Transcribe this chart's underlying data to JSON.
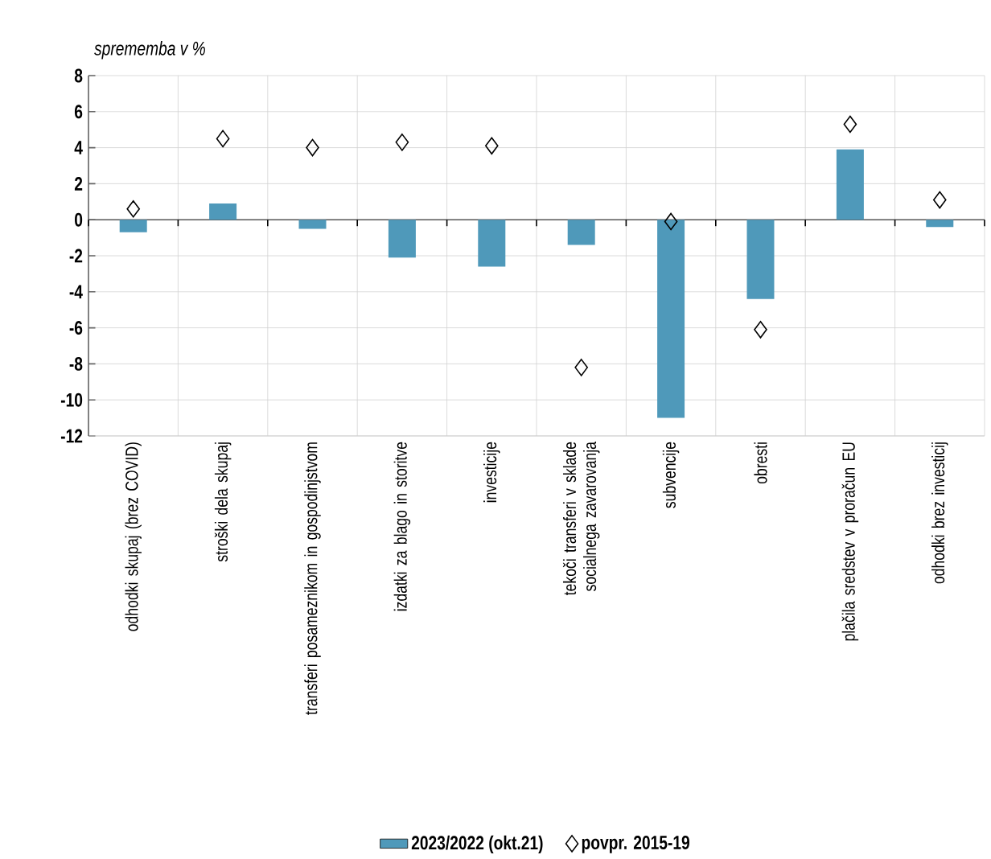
{
  "chart_data": {
    "type": "bar",
    "ylabel": "sprememba v %",
    "categories": [
      "odhodki skupaj (brez COVID)",
      "stroški dela skupaj",
      "transferi posameznikom in gospodinjstvom",
      "izdatki za blago in storitve",
      "investicije",
      "tekoči transferi v sklade socialnega zavarovanja",
      "subvencije",
      "obresti",
      "plačila sredstev v proračun EU",
      "odhodki brez investicij"
    ],
    "series": [
      {
        "name": "2023/2022 (okt.21)",
        "color": "#4f99ba",
        "values": [
          -0.7,
          0.9,
          -0.5,
          -2.1,
          -2.6,
          -1.4,
          -11.0,
          -4.4,
          3.9,
          -0.4
        ]
      },
      {
        "name": "povpr. 2015-19",
        "type": "scatter",
        "color": "#000000",
        "marker": "diamond",
        "values": [
          0.6,
          4.5,
          4.0,
          4.3,
          4.1,
          -8.2,
          -0.1,
          -6.1,
          5.3,
          1.1
        ]
      }
    ],
    "ylim": [
      -12,
      8
    ],
    "yticks": [
      -12,
      -10,
      -8,
      -6,
      -4,
      -2,
      0,
      2,
      4,
      6,
      8
    ],
    "grid": true,
    "legend": "bottom"
  }
}
